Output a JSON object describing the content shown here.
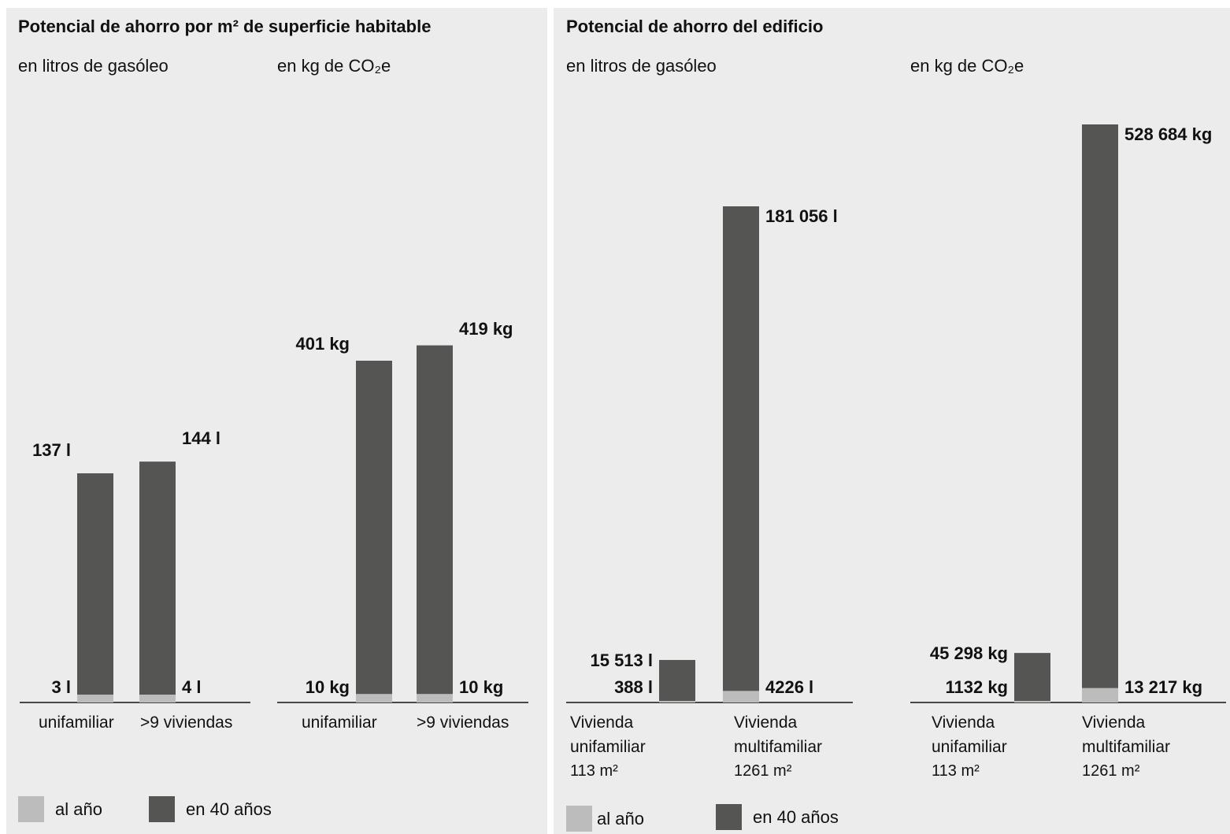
{
  "colors": {
    "al_ano": "#bcbcbc",
    "en_40_anos": "#555554",
    "background": "#ececec"
  },
  "left_panel": {
    "title": "Potencial de ahorro por m² de superficie habitable",
    "subtitle_liters": "en litros de gasóleo",
    "subtitle_co2": "en kg de CO₂e",
    "legend": {
      "al_ano": "al año",
      "en_40_anos": "en 40 años"
    }
  },
  "right_panel": {
    "title": "Potencial de ahorro del edificio",
    "subtitle_liters": "en litros de gasóleo",
    "subtitle_co2": "en kg de CO₂e",
    "legend": {
      "al_ano": "al año",
      "en_40_anos": "en 40 años"
    }
  },
  "chart_data": [
    {
      "type": "bar",
      "subtitle": "en litros de gasóleo",
      "categories": [
        "unifamiliar",
        ">9 viviendas"
      ],
      "series": [
        {
          "name": "al año",
          "values": [
            3,
            4
          ],
          "labels": [
            "3 l",
            "4 l"
          ]
        },
        {
          "name": "en 40 años",
          "values": [
            137,
            144
          ],
          "labels": [
            "137 l",
            "144 l"
          ]
        }
      ]
    },
    {
      "type": "bar",
      "subtitle": "en kg de CO₂e",
      "categories": [
        "unifamiliar",
        ">9 viviendas"
      ],
      "series": [
        {
          "name": "al año",
          "values": [
            10,
            10
          ],
          "labels": [
            "10 kg",
            "10 kg"
          ]
        },
        {
          "name": "en 40 años",
          "values": [
            401,
            419
          ],
          "labels": [
            "401 kg",
            "419 kg"
          ]
        }
      ]
    },
    {
      "type": "bar",
      "subtitle": "en litros de gasóleo",
      "categories": [
        "Vivienda unifamiliar 113 m²",
        "Vivienda multifamiliar 1261 m²"
      ],
      "series": [
        {
          "name": "al año",
          "values": [
            388,
            4226
          ],
          "labels": [
            "388 l",
            "4226 l"
          ]
        },
        {
          "name": "en 40 años",
          "values": [
            15513,
            181056
          ],
          "labels": [
            "15 513 l",
            "181 056 l"
          ]
        }
      ]
    },
    {
      "type": "bar",
      "subtitle": "en kg de CO₂e",
      "categories": [
        "Vivienda unifamiliar 113 m²",
        "Vivienda multifamiliar 1261 m²"
      ],
      "series": [
        {
          "name": "al año",
          "values": [
            1132,
            13217
          ],
          "labels": [
            "1132 kg",
            "13 217 kg"
          ]
        },
        {
          "name": "en 40 años",
          "values": [
            45298,
            528684
          ],
          "labels": [
            "45 298 kg",
            "528 684 kg"
          ]
        }
      ]
    }
  ]
}
